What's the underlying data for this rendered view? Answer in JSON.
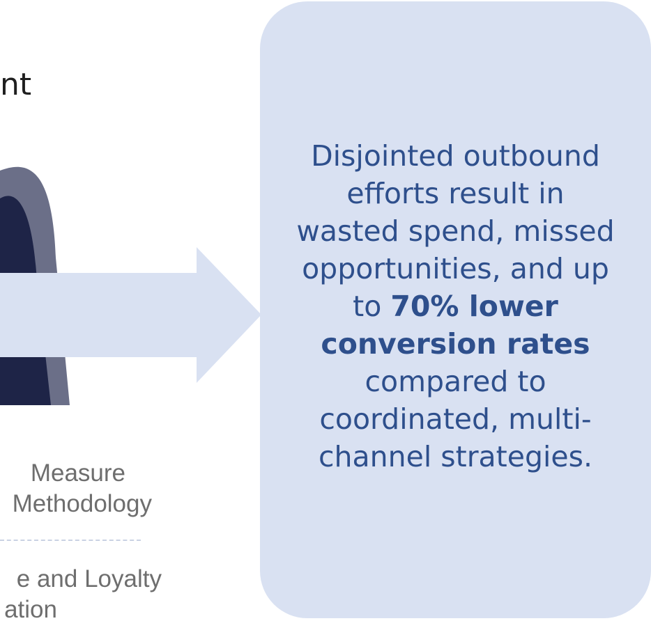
{
  "heading": {
    "fragment": "nt"
  },
  "graphic": {
    "outer_color": "#6b6f88",
    "inner_color": "#1e2447",
    "arrow_color": "#d9e1f2"
  },
  "labels": {
    "measure_line1": "Measure",
    "measure_line2": "Methodology",
    "loyalty_line1": "e and Loyalty",
    "loyalty_line2": "ation"
  },
  "callout": {
    "background": "#d9e1f2",
    "text_color": "#2e4f8c",
    "text_before": "Disjointed outbound efforts result in wasted spend, missed opportunities, and up to ",
    "text_bold": "70% lower conversion rates",
    "text_after": " compared to coordinated, multi-channel strategies."
  }
}
